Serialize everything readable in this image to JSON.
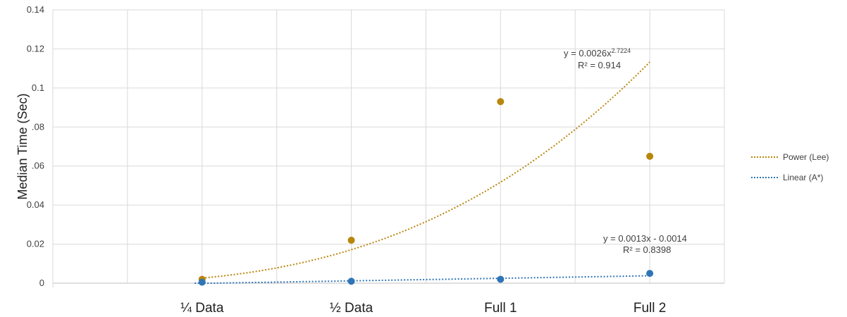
{
  "chart_data": {
    "type": "scatter",
    "title": "",
    "xlabel": "",
    "ylabel": "Median Time (Sec)",
    "categories": [
      "¼ Data",
      "½  Data",
      "Full 1",
      "Full 2"
    ],
    "ylim": [
      0,
      0.14
    ],
    "y_ticks": [
      "0",
      "0.02",
      "0.04",
      ".06",
      ".08",
      "0.1",
      "0.12",
      "0.14"
    ],
    "y_tick_values": [
      0,
      0.02,
      0.04,
      0.06,
      0.08,
      0.1,
      0.12,
      0.14
    ],
    "grid": true,
    "legend_position": "right",
    "series": [
      {
        "key": "lee",
        "color": "#B8860B",
        "points": [
          {
            "x": 1,
            "y": 0.002
          },
          {
            "x": 2,
            "y": 0.022
          },
          {
            "x": 3,
            "y": 0.093
          },
          {
            "x": 4,
            "y": 0.065
          }
        ],
        "trendline": {
          "type": "power",
          "a": 0.0026,
          "b": 2.7224,
          "legend_label": "Power (Lee)",
          "equation_text": "y = 0.0026x",
          "equation_exponent": "2.7224",
          "r2_text": "R² = 0.914"
        }
      },
      {
        "key": "astar",
        "color": "#2E75B6",
        "points": [
          {
            "x": 1,
            "y": 0.0005
          },
          {
            "x": 2,
            "y": 0.001
          },
          {
            "x": 3,
            "y": 0.002
          },
          {
            "x": 4,
            "y": 0.005
          }
        ],
        "trendline": {
          "type": "linear",
          "slope": 0.0013,
          "intercept": -0.0014,
          "legend_label": "Linear (A*)",
          "equation_text": "y = 0.0013x - 0.0014",
          "r2_text": "R² = 0.8398"
        }
      }
    ]
  }
}
